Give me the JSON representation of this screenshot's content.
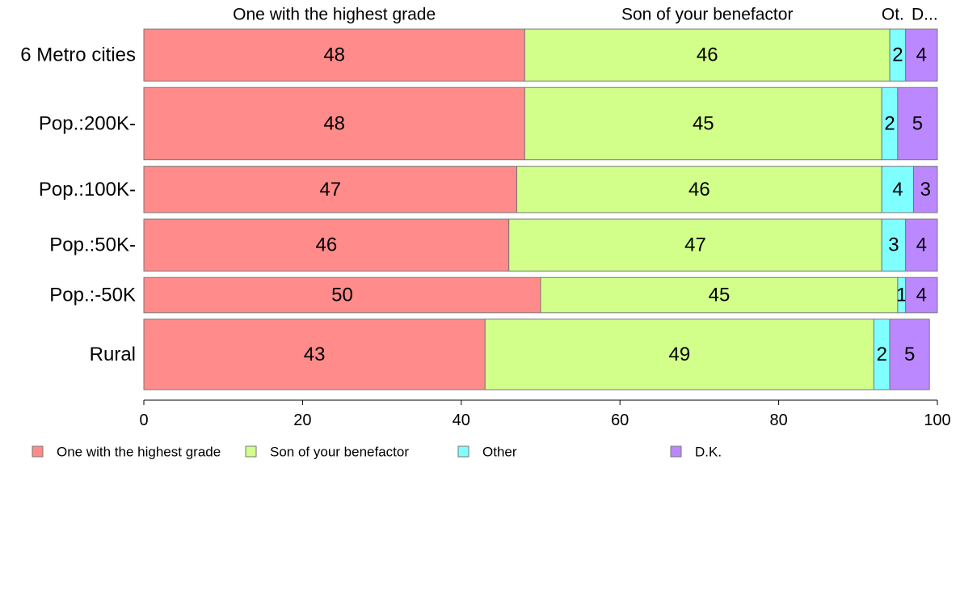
{
  "chart_data": {
    "type": "bar",
    "orientation": "horizontal",
    "stacked": true,
    "categories": [
      "6 Metro cities",
      "Pop.:200K-",
      "Pop.:100K-",
      "Pop.:50K-",
      "Pop.:-50K",
      "Rural"
    ],
    "category_shares": [
      0.14,
      0.195,
      0.125,
      0.14,
      0.095,
      0.19
    ],
    "series": [
      {
        "name": "One with the highest grade",
        "color": "#FF8B8B",
        "values": [
          48,
          48,
          47,
          46,
          50,
          43
        ],
        "labels": [
          "48",
          "48",
          "47",
          "46",
          "50",
          "43"
        ]
      },
      {
        "name": "Son of your benefactor",
        "color": "#D1FF8A",
        "values": [
          46,
          45,
          46,
          47,
          45,
          49
        ],
        "labels": [
          "46",
          "45",
          "46",
          "47",
          "45",
          "49"
        ]
      },
      {
        "name": "Other",
        "color": "#7FFFFF",
        "values": [
          2,
          2,
          4,
          3,
          1,
          2
        ],
        "labels": [
          "2",
          "2",
          "4",
          "3",
          "1",
          "2"
        ]
      },
      {
        "name": "D.K.",
        "color": "#BB88FF",
        "values": [
          4,
          5,
          3,
          4,
          4,
          5
        ],
        "labels": [
          "4",
          "5",
          "3",
          "4",
          "4",
          "5"
        ]
      }
    ],
    "top_labels": [
      "One with the highest grade",
      "Son of your benefactor",
      "Ot.",
      "D..."
    ],
    "xlim": [
      0,
      100
    ],
    "xticks": [
      0,
      20,
      40,
      60,
      80,
      100
    ],
    "grid": false,
    "legend_position": "bottom"
  }
}
